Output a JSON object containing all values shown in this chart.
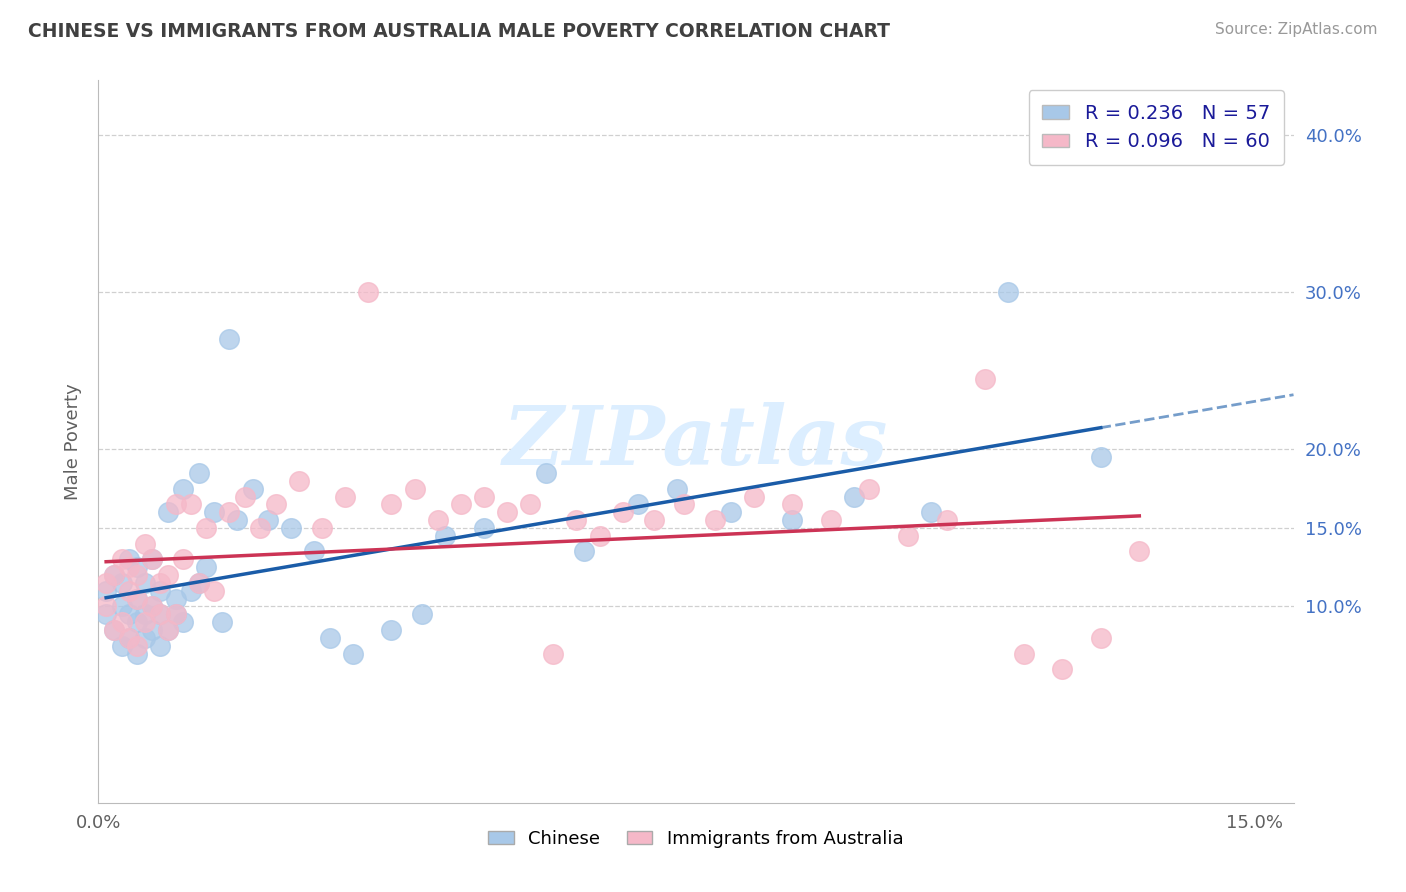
{
  "title": "CHINESE VS IMMIGRANTS FROM AUSTRALIA MALE POVERTY CORRELATION CHART",
  "source": "Source: ZipAtlas.com",
  "ylabel": "Male Poverty",
  "xlim": [
    0.0,
    0.155
  ],
  "ylim": [
    -0.025,
    0.435
  ],
  "ytick_positions": [
    0.1,
    0.15,
    0.2,
    0.3,
    0.4
  ],
  "ytick_labels": [
    "10.0%",
    "15.0%",
    "20.0%",
    "30.0%",
    "40.0%"
  ],
  "xtick_positions": [
    0.0,
    0.15
  ],
  "xtick_labels": [
    "0.0%",
    "15.0%"
  ],
  "R_chinese": 0.236,
  "N_chinese": 57,
  "R_australia": 0.096,
  "N_australia": 60,
  "color_chinese": "#a8c8e8",
  "color_australia": "#f5b8c8",
  "line_color_chinese": "#1a5ca8",
  "line_color_australia": "#cc3355",
  "watermark_color": "#dceeff",
  "grid_color": "#d0d0d0",
  "title_color": "#404040",
  "source_color": "#999999",
  "ylabel_color": "#606060",
  "tick_color": "#606060",
  "right_tick_color": "#4472c4",
  "legend_text_color": "#1a1a99",
  "chinese_x": [
    0.001,
    0.001,
    0.002,
    0.002,
    0.003,
    0.003,
    0.003,
    0.004,
    0.004,
    0.004,
    0.005,
    0.005,
    0.005,
    0.005,
    0.006,
    0.006,
    0.006,
    0.007,
    0.007,
    0.007,
    0.008,
    0.008,
    0.008,
    0.009,
    0.009,
    0.01,
    0.01,
    0.011,
    0.011,
    0.012,
    0.013,
    0.013,
    0.014,
    0.015,
    0.016,
    0.017,
    0.018,
    0.02,
    0.022,
    0.025,
    0.028,
    0.03,
    0.033,
    0.038,
    0.042,
    0.045,
    0.05,
    0.058,
    0.063,
    0.07,
    0.075,
    0.082,
    0.09,
    0.098,
    0.108,
    0.118,
    0.13
  ],
  "chinese_y": [
    0.095,
    0.11,
    0.085,
    0.12,
    0.075,
    0.1,
    0.115,
    0.08,
    0.095,
    0.13,
    0.07,
    0.09,
    0.105,
    0.125,
    0.08,
    0.095,
    0.115,
    0.085,
    0.1,
    0.13,
    0.075,
    0.095,
    0.11,
    0.085,
    0.16,
    0.095,
    0.105,
    0.09,
    0.175,
    0.11,
    0.115,
    0.185,
    0.125,
    0.16,
    0.09,
    0.27,
    0.155,
    0.175,
    0.155,
    0.15,
    0.135,
    0.08,
    0.07,
    0.085,
    0.095,
    0.145,
    0.15,
    0.185,
    0.135,
    0.165,
    0.175,
    0.16,
    0.155,
    0.17,
    0.16,
    0.3,
    0.195
  ],
  "australia_x": [
    0.001,
    0.001,
    0.002,
    0.002,
    0.003,
    0.003,
    0.004,
    0.004,
    0.004,
    0.005,
    0.005,
    0.005,
    0.006,
    0.006,
    0.007,
    0.007,
    0.008,
    0.008,
    0.009,
    0.009,
    0.01,
    0.01,
    0.011,
    0.012,
    0.013,
    0.014,
    0.015,
    0.017,
    0.019,
    0.021,
    0.023,
    0.026,
    0.029,
    0.032,
    0.035,
    0.038,
    0.041,
    0.044,
    0.047,
    0.05,
    0.053,
    0.056,
    0.059,
    0.062,
    0.065,
    0.068,
    0.072,
    0.076,
    0.08,
    0.085,
    0.09,
    0.095,
    0.1,
    0.105,
    0.11,
    0.115,
    0.12,
    0.125,
    0.13,
    0.135
  ],
  "australia_y": [
    0.1,
    0.115,
    0.085,
    0.12,
    0.09,
    0.13,
    0.08,
    0.11,
    0.125,
    0.075,
    0.105,
    0.12,
    0.09,
    0.14,
    0.1,
    0.13,
    0.095,
    0.115,
    0.085,
    0.12,
    0.095,
    0.165,
    0.13,
    0.165,
    0.115,
    0.15,
    0.11,
    0.16,
    0.17,
    0.15,
    0.165,
    0.18,
    0.15,
    0.17,
    0.3,
    0.165,
    0.175,
    0.155,
    0.165,
    0.17,
    0.16,
    0.165,
    0.07,
    0.155,
    0.145,
    0.16,
    0.155,
    0.165,
    0.155,
    0.17,
    0.165,
    0.155,
    0.175,
    0.145,
    0.155,
    0.245,
    0.07,
    0.06,
    0.08,
    0.135
  ]
}
